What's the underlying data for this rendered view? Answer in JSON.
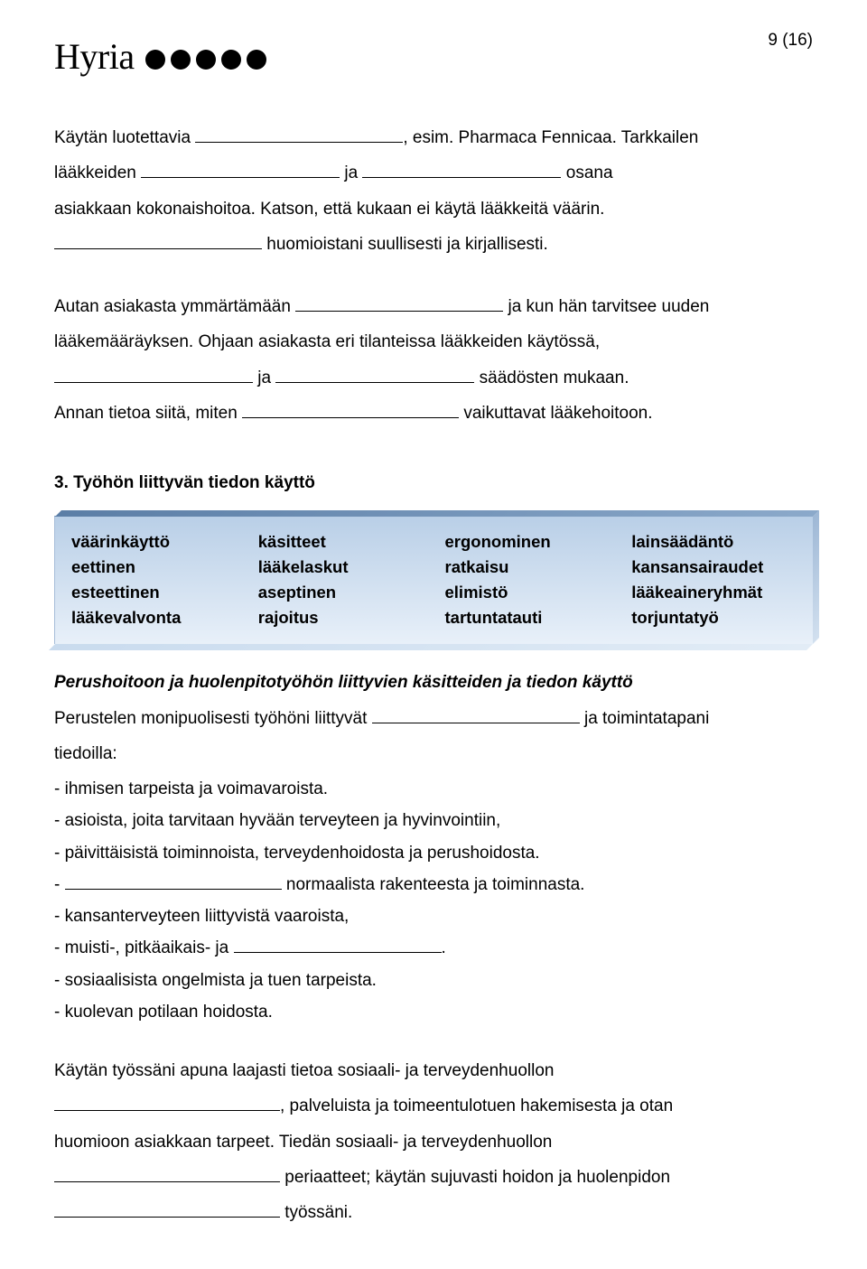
{
  "header": {
    "logo_text": "Hyria",
    "dot_count": 5,
    "dot_color": "#000000",
    "page_number": "9 (16)"
  },
  "para1": {
    "t1": "Käytän luotettavia ",
    "t2": ", esim. Pharmaca Fennicaa. Tarkkailen",
    "t3": "lääkkeiden ",
    "ja": " ja ",
    "t4": " osana",
    "t5": "asiakkaan kokonaishoitoa. Katson, että kukaan ei käytä lääkkeitä väärin.",
    "t6": " huomioistani suullisesti ja kirjallisesti."
  },
  "para2": {
    "t1": "Autan asiakasta ymmärtämään ",
    "t2": " ja kun hän tarvitsee uuden",
    "t3": "lääkemääräyksen. Ohjaan asiakasta eri tilanteissa lääkkeiden käytössä,",
    "ja": " ja ",
    "t4": " säädösten mukaan.",
    "t5": "Annan tietoa siitä, miten ",
    "t6": " vaikuttavat lääkehoitoon."
  },
  "section3": {
    "heading": "3. Työhön liittyvän tiedon käyttö",
    "box": {
      "bg_top": "#b9cfe7",
      "bg_bottom": "#e8f0f9",
      "columns": [
        [
          "väärinkäyttö",
          "eettinen",
          "esteettinen",
          "lääkevalvonta"
        ],
        [
          "käsitteet",
          "lääkelaskut",
          "aseptinen",
          "rajoitus"
        ],
        [
          "ergonominen",
          "ratkaisu",
          "elimistö",
          "tartuntatauti"
        ],
        [
          "lainsäädäntö",
          "kansansairaudet",
          "lääkeaineryhmät",
          "torjuntatyö"
        ]
      ]
    },
    "subheading": "Perushoitoon ja huolenpitotyöhön liittyvien käsitteiden ja tiedon käyttö",
    "p1_a": "Perustelen monipuolisesti työhöni liittyvät ",
    "p1_b": " ja toimintatapani",
    "p2": "tiedoilla:",
    "items": {
      "i1": "- ihmisen tarpeista ja voimavaroista.",
      "i2": "- asioista, joita tarvitaan hyvään terveyteen ja hyvinvointiin,",
      "i3": "- päivittäisistä toiminnoista, terveydenhoidosta ja perushoidosta.",
      "i4_a": "- ",
      "i4_b": " normaalista rakenteesta ja toiminnasta.",
      "i5": "- kansanterveyteen liittyvistä vaaroista,",
      "i6_a": "- muisti-, pitkäaikais- ja ",
      "i6_b": ".",
      "i7": "- sosiaalisista ongelmista ja tuen tarpeista.",
      "i8": "- kuolevan potilaan hoidosta."
    },
    "p3": "Käytän työssäni apuna laajasti tietoa sosiaali- ja terveydenhuollon",
    "p4_a": ", palveluista ja toimeentulotuen hakemisesta ja otan",
    "p5": "huomioon asiakkaan tarpeet. Tiedän sosiaali- ja terveydenhuollon",
    "p6_a": " periaatteet; käytän sujuvasti hoidon ja huolenpidon",
    "p7_a": " työssäni."
  }
}
